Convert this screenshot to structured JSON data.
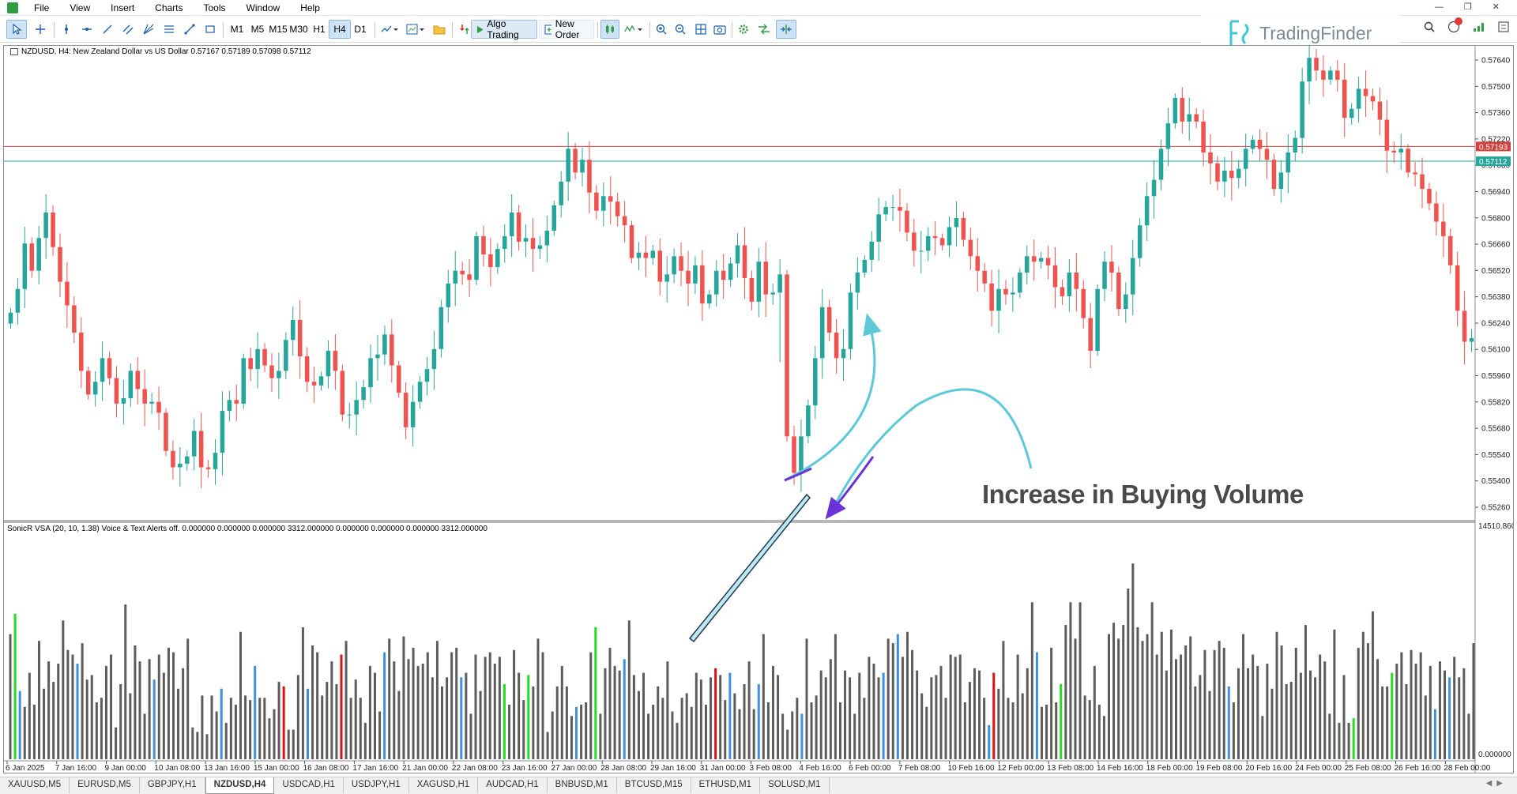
{
  "app": {
    "menu": [
      "File",
      "View",
      "Insert",
      "Charts",
      "Tools",
      "Window",
      "Help"
    ]
  },
  "toolbar": {
    "timeframes": [
      "M1",
      "M5",
      "M15",
      "M30",
      "H1",
      "H4",
      "D1"
    ],
    "active_timeframe": "H4",
    "algo_trading": "Algo Trading",
    "new_order": "New Order"
  },
  "branding": {
    "logo_text": "TradingFinder"
  },
  "chart": {
    "info": "NZDUSD, H4:  New Zealand Dollar vs US Dollar  0.57167 0.57189 0.57098 0.57112",
    "indicator_info": "SonicR VSA (20, 10, 1.38) Voice & Text Alerts off.  0.000000 0.000000 0.000000 3312.000000 0.000000 0.000000 0.000000 3312.000000",
    "annotation": "Increase in Buying Volume",
    "price_ticks": [
      "0.57640",
      "0.57500",
      "0.57360",
      "0.57220",
      "0.57080",
      "0.56940",
      "0.56800",
      "0.56660",
      "0.56520",
      "0.56380",
      "0.56240",
      "0.56100",
      "0.55960",
      "0.55820",
      "0.55680",
      "0.55540",
      "0.55400",
      "0.55260"
    ],
    "red_line_label": "0.57193",
    "green_line_label": "0.57112",
    "volume_ticks": [
      "14510.8600",
      "0.000000"
    ],
    "date_ticks": [
      "6 Jan 2025",
      "7 Jan 16:00",
      "9 Jan 00:00",
      "10 Jan 08:00",
      "13 Jan 16:00",
      "15 Jan 00:00",
      "16 Jan 08:00",
      "17 Jan 16:00",
      "21 Jan 00:00",
      "22 Jan 08:00",
      "23 Jan 16:00",
      "27 Jan 00:00",
      "28 Jan 08:00",
      "29 Jan 16:00",
      "31 Jan 00:00",
      "3 Feb 08:00",
      "4 Feb 16:00",
      "6 Feb 00:00",
      "7 Feb 08:00",
      "10 Feb 16:00",
      "12 Feb 00:00",
      "13 Feb 08:00",
      "14 Feb 16:00",
      "18 Feb 00:00",
      "19 Feb 08:00",
      "20 Feb 16:00",
      "24 Feb 00:00",
      "25 Feb 08:00",
      "26 Feb 16:00",
      "28 Feb 00:00"
    ]
  },
  "chart_data": {
    "type": "candlestick",
    "symbol": "NZDUSD",
    "timeframe": "H4",
    "price_range": [
      0.5515,
      0.5772
    ],
    "volume_range": [
      0,
      14510.86
    ],
    "colors": {
      "up": "#26a69a",
      "down": "#ef5350",
      "vol_neutral": "#5c5c5c",
      "vol_blue": "#3d8fe0",
      "vol_green": "#22dd22",
      "vol_red": "#dd1111",
      "red_line": "#d0413f",
      "green_line": "#26a69a"
    },
    "horizontal_lines": [
      0.57193,
      0.57112
    ],
    "closes": [
      0.5628,
      0.5641,
      0.5666,
      0.5651,
      0.5669,
      0.5683,
      0.5664,
      0.5645,
      0.5632,
      0.5617,
      0.5596,
      0.5583,
      0.559,
      0.5603,
      0.5592,
      0.5578,
      0.5581,
      0.5596,
      0.5586,
      0.5578,
      0.5579,
      0.5573,
      0.5552,
      0.5543,
      0.5545,
      0.5549,
      0.5563,
      0.5543,
      0.5542,
      0.5551,
      0.5574,
      0.558,
      0.5578,
      0.5603,
      0.5597,
      0.5608,
      0.5599,
      0.5592,
      0.5596,
      0.5613,
      0.5624,
      0.5604,
      0.559,
      0.5588,
      0.5593,
      0.5607,
      0.5596,
      0.5572,
      0.5572,
      0.558,
      0.5587,
      0.5603,
      0.5605,
      0.5616,
      0.5599,
      0.5584,
      0.5565,
      0.5579,
      0.559,
      0.5597,
      0.5608,
      0.5631,
      0.5644,
      0.5651,
      0.5649,
      0.5646,
      0.567,
      0.566,
      0.5653,
      0.5663,
      0.567,
      0.5683,
      0.5667,
      0.5669,
      0.5663,
      0.5665,
      0.5673,
      0.5687,
      0.57,
      0.5718,
      0.5705,
      0.5712,
      0.5694,
      0.5684,
      0.5692,
      0.5689,
      0.5681,
      0.5676,
      0.5658,
      0.5661,
      0.5658,
      0.5662,
      0.5645,
      0.5649,
      0.5659,
      0.5651,
      0.5644,
      0.5654,
      0.5633,
      0.5638,
      0.5651,
      0.5646,
      0.5655,
      0.5665,
      0.5647,
      0.5634,
      0.5656,
      0.5638,
      0.5639,
      0.5649,
      0.556,
      0.554,
      0.556,
      0.5577,
      0.5603,
      0.5631,
      0.5617,
      0.5603,
      0.5608,
      0.5639,
      0.565,
      0.5657,
      0.5667,
      0.5682,
      0.5686,
      0.5686,
      0.5684,
      0.5672,
      0.5662,
      0.5662,
      0.567,
      0.5669,
      0.5665,
      0.5675,
      0.568,
      0.5668,
      0.5659,
      0.5651,
      0.5644,
      0.5629,
      0.5641,
      0.5638,
      0.5639,
      0.565,
      0.5659,
      0.5656,
      0.5658,
      0.5654,
      0.5642,
      0.5637,
      0.565,
      0.5641,
      0.5625,
      0.5607,
      0.5641,
      0.5656,
      0.565,
      0.563,
      0.5638,
      0.5658,
      0.5676,
      0.5692,
      0.5701,
      0.5718,
      0.5732,
      0.5746,
      0.5733,
      0.5737,
      0.5733,
      0.5716,
      0.571,
      0.57,
      0.5706,
      0.5702,
      0.5707,
      0.5718,
      0.5723,
      0.5718,
      0.5712,
      0.5696,
      0.5705,
      0.5716,
      0.5724,
      0.5755,
      0.5768,
      0.5761,
      0.5756,
      0.5761,
      0.5756,
      0.5735,
      0.574,
      0.5751,
      0.5747,
      0.5744,
      0.5734,
      0.5717,
      0.5716,
      0.5718,
      0.5705,
      0.5704,
      0.5696,
      0.5688,
      0.5678,
      0.567,
      0.5654,
      0.5629,
      0.5612,
      0.5614
    ],
    "volume_levels": [
      0.55,
      0.64,
      0.3,
      0.23,
      0.38,
      0.24,
      0.52,
      0.31,
      0.43,
      0.34,
      0.42,
      0.61,
      0.48,
      0.46,
      0.42,
      0.51,
      0.35,
      0.37,
      0.25,
      0.27,
      0.41,
      0.46,
      0.14,
      0.33,
      0.68,
      0.29,
      0.5,
      0.43,
      0.2,
      0.44,
      0.35,
      0.46,
      0.38,
      0.49,
      0.47,
      0.31,
      0.4,
      0.53,
      0.14,
      0.12,
      0.28,
      0.11,
      0.28,
      0.21,
      0.31,
      0.16,
      0.27,
      0.24,
      0.56,
      0.28,
      0.26,
      0.41,
      0.27,
      0.27,
      0.18,
      0.22,
      0.34,
      0.32,
      0.13,
      0.13,
      0.37,
      0.58,
      0.31,
      0.5,
      0.47,
      0.28,
      0.34,
      0.43,
      0.33,
      0.46,
      0.52,
      0.27,
      0.35,
      0.27,
      0.16,
      0.41,
      0.38,
      0.21,
      0.47,
      0.53,
      0.43,
      0.3,
      0.54,
      0.44,
      0.49,
      0.41,
      0.42,
      0.47,
      0.36,
      0.52,
      0.32,
      0.36,
      0.47,
      0.49,
      0.36,
      0.38,
      0.2,
      0.46,
      0.3,
      0.45,
      0.47,
      0.42,
      0.45,
      0.33,
      0.24,
      0.48,
      0.38,
      0.26,
      0.37,
      0.32,
      0.53,
      0.47,
      0.12,
      0.21,
      0.32,
      0.41,
      0.32,
      0.19,
      0.23,
      0.24,
      0.25,
      0.47,
      0.58,
      0.2,
      0.4,
      0.49,
      0.41,
      0.39,
      0.44,
      0.61,
      0.37,
      0.3,
      0.38,
      0.2,
      0.24,
      0.32,
      0.27,
      0.43,
      0.21,
      0.16,
      0.27,
      0.29,
      0.23,
      0.38,
      0.35,
      0.24,
      0.36,
      0.4,
      0.37,
      0.26,
      0.38,
      0.29,
      0.22,
      0.33,
      0.43,
      0.22,
      0.33,
      0.55,
      0.25,
      0.41,
      0.37,
      0.2,
      0.13,
      0.21,
      0.27,
      0.2,
      0.53,
      0.25,
      0.28,
      0.39,
      0.36,
      0.44,
      0.55,
      0.25,
      0.39,
      0.36,
      0.2,
      0.38,
      0.27,
      0.45,
      0.42,
      0.36,
      0.38,
      0.53,
      0.51,
      0.55,
      0.45,
      0.56,
      0.48,
      0.39,
      0.29,
      0.23,
      0.36,
      0.37,
      0.41,
      0.27,
      0.46,
      0.45,
      0.46,
      0.25,
      0.34,
      0.4,
      0.39,
      0.27,
      0.15,
      0.38,
      0.31,
      0.52,
      0.27,
      0.25,
      0.46,
      0.29,
      0.4,
      0.69,
      0.47,
      0.23,
      0.24,
      0.49,
      0.25,
      0.33,
      0.59,
      0.69,
      0.53,
      0.69,
      0.28,
      0.26,
      0.41,
      0.24,
      0.19,
      0.55,
      0.6,
      0.53,
      0.59,
      0.75,
      0.86,
      0.58,
      0.52,
      0.55,
      0.69,
      0.46,
      0.56,
      0.39,
      0.57,
      0.44,
      0.46,
      0.5,
      0.54,
      0.32,
      0.37,
      0.48,
      0.3,
      0.48,
      0.52,
      0.49,
      0.32,
      0.25,
      0.4,
      0.55,
      0.4,
      0.46,
      0.41,
      0.19,
      0.42,
      0.31,
      0.56,
      0.5,
      0.33,
      0.34,
      0.49,
      0.38,
      0.59,
      0.39,
      0.36,
      0.46,
      0.43,
      0.2,
      0.57,
      0.16,
      0.37,
      0.16,
      0.18,
      0.49,
      0.56,
      0.51,
      0.65,
      0.44,
      0.32,
      0.32,
      0.38,
      0.42,
      0.47,
      0.33,
      0.48,
      0.42,
      0.47,
      0.28,
      0.41,
      0.22,
      0.43,
      0.39,
      0.36,
      0.45,
      0.36,
      0.4,
      0.2,
      0.51
    ],
    "volume_highlights": {
      "blue": [
        2,
        14,
        30,
        44,
        51,
        62,
        78,
        94,
        118,
        128,
        150,
        156,
        165,
        182,
        185,
        204,
        214,
        254,
        297,
        300
      ],
      "green": [
        1,
        103,
        108,
        122,
        219,
        280,
        288,
        308
      ],
      "red": [
        57,
        69,
        147,
        205,
        317
      ]
    }
  }
}
